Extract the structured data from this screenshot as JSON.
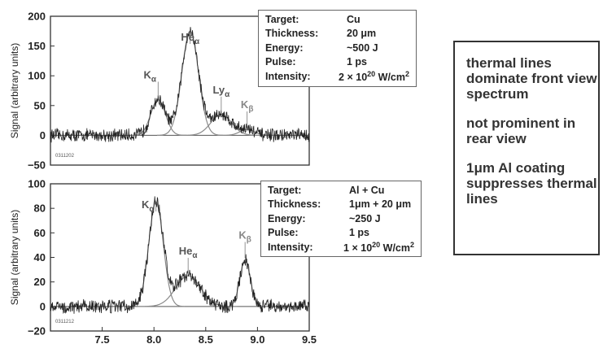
{
  "chart_data": [
    {
      "type": "line",
      "panel": "front view",
      "ylabel": "Signal (arbitrary units)",
      "xlim": [
        7.0,
        9.5
      ],
      "ylim": [
        -50,
        200
      ],
      "yticks": [
        "200",
        "150",
        "100",
        "50",
        "0",
        "−50"
      ],
      "ytick_values": [
        200,
        150,
        100,
        50,
        0,
        -50
      ],
      "code": "0311202",
      "peaks": [
        {
          "name": "Kα",
          "label": "K",
          "sub": "α",
          "x": 8.04,
          "y": 60,
          "width": 0.07
        },
        {
          "name": "Heα",
          "label": "He",
          "sub": "α",
          "x": 8.35,
          "y": 175,
          "width": 0.08
        },
        {
          "name": "Lyα",
          "label": "Ly",
          "sub": "α",
          "x": 8.65,
          "y": 35,
          "width": 0.1
        },
        {
          "name": "Kβ",
          "label": "K",
          "sub": "β",
          "x": 8.9,
          "y": 10,
          "width": 0.07
        }
      ],
      "noise": 6,
      "info": {
        "rows": [
          {
            "k": "Target:",
            "v": "Cu"
          },
          {
            "k": "Thickness:",
            "v": "20 μm"
          },
          {
            "k": "Energy:",
            "v": "~500 J"
          },
          {
            "k": "Pulse:",
            "v": "1 ps"
          },
          {
            "k": "Intensity:",
            "v": "2 × 10",
            "sup": "20",
            "unit": " W/cm",
            "unit_sup": "2"
          }
        ]
      }
    },
    {
      "type": "line",
      "panel": "rear view",
      "ylabel": "Signal (arbitrary units)",
      "xlim": [
        7.0,
        9.5
      ],
      "ylim": [
        -20,
        100
      ],
      "yticks": [
        "100",
        "80",
        "60",
        "40",
        "20",
        "0",
        "−20"
      ],
      "ytick_values": [
        100,
        80,
        60,
        40,
        20,
        0,
        -20
      ],
      "xticks": [
        "7.5",
        "8.0",
        "8.5",
        "9.0",
        "9.5"
      ],
      "xtick_values": [
        7.5,
        8.0,
        8.5,
        9.0,
        9.5
      ],
      "code": "0311212",
      "peaks": [
        {
          "name": "Kα",
          "label": "K",
          "sub": "α",
          "x": 8.02,
          "y": 85,
          "width": 0.07
        },
        {
          "name": "Heα",
          "label": "He",
          "sub": "α",
          "x": 8.33,
          "y": 25,
          "width": 0.12
        },
        {
          "name": "Kβ",
          "label": "K",
          "sub": "β",
          "x": 8.88,
          "y": 38,
          "width": 0.05
        }
      ],
      "noise": 3,
      "info": {
        "rows": [
          {
            "k": "Target:",
            "v": "Al + Cu"
          },
          {
            "k": "Thickness:",
            "v": "1μm + 20 μm"
          },
          {
            "k": "Energy:",
            "v": "~250 J"
          },
          {
            "k": "Pulse:",
            "v": "1 ps"
          },
          {
            "k": "Intensity:",
            "v": "1 × 10",
            "sup": "20",
            "unit": " W/cm",
            "unit_sup": "2"
          }
        ]
      }
    }
  ],
  "note": {
    "lines": [
      "thermal lines dominate front view spectrum",
      "not prominent in rear view",
      "1μm Al coating suppresses thermal lines"
    ]
  }
}
